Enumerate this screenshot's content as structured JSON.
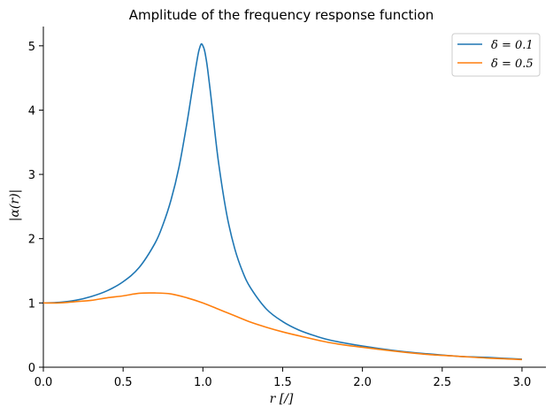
{
  "chart_data": {
    "type": "line",
    "title": "Amplitude of the frequency response function",
    "xlabel": "r [/]",
    "ylabel": "|α(r)|",
    "xlim": [
      0,
      3.15
    ],
    "ylim": [
      0,
      5.3
    ],
    "xticks": [
      0.0,
      0.5,
      1.0,
      1.5,
      2.0,
      2.5,
      3.0
    ],
    "xtick_labels": [
      "0.0",
      "0.5",
      "1.0",
      "1.5",
      "2.0",
      "2.5",
      "3.0"
    ],
    "yticks": [
      0,
      1,
      2,
      3,
      4,
      5
    ],
    "ytick_labels": [
      "0",
      "1",
      "2",
      "3",
      "4",
      "5"
    ],
    "grid": false,
    "legend_position": "top-right",
    "series": [
      {
        "name": "δ = 0.1",
        "color": "#1f77b4",
        "x": [
          0.0,
          0.1,
          0.2,
          0.3,
          0.4,
          0.5,
          0.6,
          0.7,
          0.75,
          0.8,
          0.85,
          0.9,
          0.93,
          0.95,
          0.97,
          0.98,
          0.99,
          1.0,
          1.01,
          1.02,
          1.03,
          1.05,
          1.07,
          1.1,
          1.15,
          1.2,
          1.25,
          1.3,
          1.4,
          1.5,
          1.6,
          1.7,
          1.8,
          2.0,
          2.2,
          2.4,
          2.6,
          2.8,
          3.0
        ],
        "y": [
          1.0,
          1.01,
          1.04,
          1.1,
          1.19,
          1.33,
          1.55,
          1.93,
          2.22,
          2.6,
          3.11,
          3.8,
          4.27,
          4.58,
          4.87,
          4.97,
          5.03,
          5.0,
          4.93,
          4.8,
          4.63,
          4.22,
          3.77,
          3.15,
          2.37,
          1.84,
          1.48,
          1.23,
          0.9,
          0.71,
          0.58,
          0.49,
          0.42,
          0.33,
          0.26,
          0.21,
          0.17,
          0.15,
          0.125
        ]
      },
      {
        "name": "δ = 0.5",
        "color": "#ff7f0e",
        "x": [
          0.0,
          0.1,
          0.2,
          0.3,
          0.4,
          0.5,
          0.6,
          0.7,
          0.8,
          0.9,
          1.0,
          1.1,
          1.2,
          1.3,
          1.4,
          1.5,
          1.6,
          1.8,
          2.0,
          2.2,
          2.4,
          2.6,
          2.8,
          3.0
        ],
        "y": [
          1.0,
          1.0,
          1.02,
          1.04,
          1.08,
          1.11,
          1.15,
          1.155,
          1.14,
          1.08,
          1.0,
          0.9,
          0.8,
          0.7,
          0.62,
          0.55,
          0.49,
          0.38,
          0.31,
          0.25,
          0.2,
          0.17,
          0.14,
          0.12
        ]
      }
    ]
  }
}
